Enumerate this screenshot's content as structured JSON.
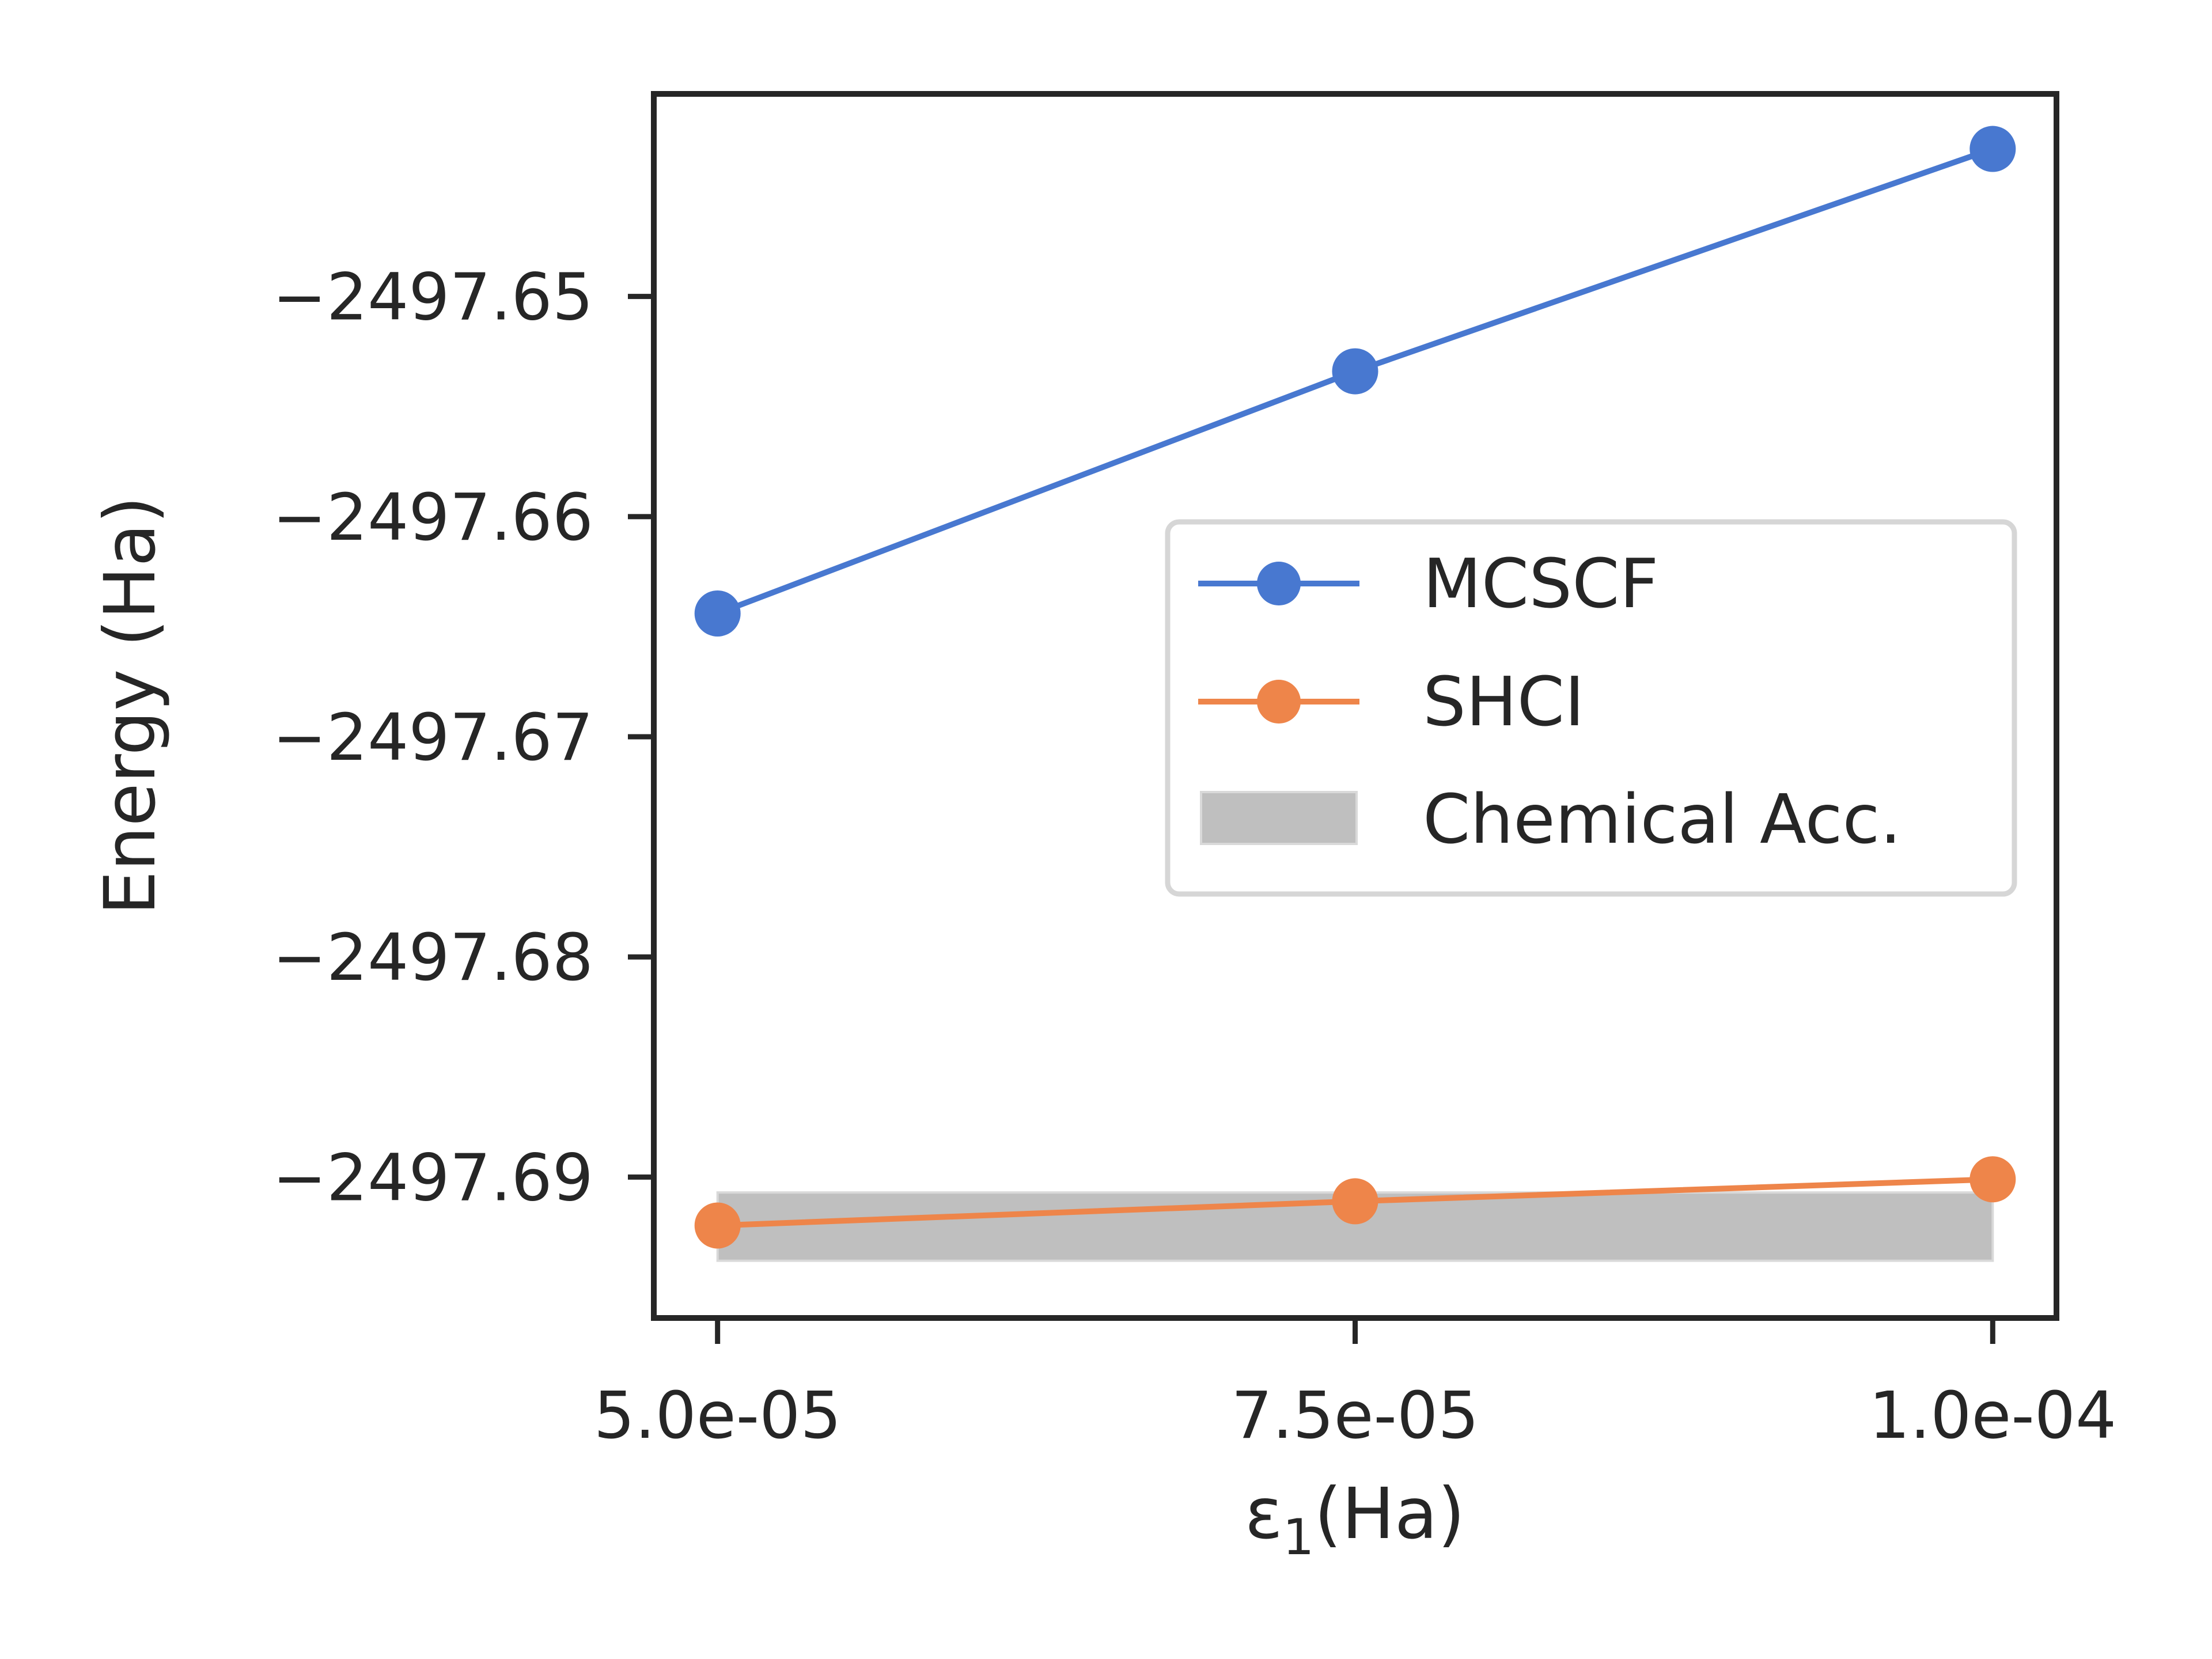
{
  "chart_data": {
    "type": "line",
    "xlabel": "ε₁(Ha)",
    "xlabel_main": "ε",
    "xlabel_sub": "1",
    "xlabel_tail": "(Ha)",
    "ylabel": "Energy (Ha)",
    "x": [
      5e-05,
      7.5e-05,
      0.0001
    ],
    "xticks": [
      {
        "value": 5e-05,
        "label": "5.0e-05"
      },
      {
        "value": 7.5e-05,
        "label": "7.5e-05"
      },
      {
        "value": 0.0001,
        "label": "1.0e-04"
      }
    ],
    "yticks": [
      {
        "value": -2497.65,
        "label": "−2497.65"
      },
      {
        "value": -2497.66,
        "label": "−2497.66"
      },
      {
        "value": -2497.67,
        "label": "−2497.67"
      },
      {
        "value": -2497.68,
        "label": "−2497.68"
      },
      {
        "value": -2497.69,
        "label": "−2497.69"
      }
    ],
    "xlim": [
      4.75e-05,
      0.0001025
    ],
    "ylim": [
      -2497.6964,
      -2497.6408
    ],
    "grid": false,
    "legend_position": "center-right",
    "series": [
      {
        "name": "MCSCF",
        "color": "#4878d0",
        "values": [
          -2497.6644,
          -2497.6534,
          -2497.6433
        ]
      },
      {
        "name": "SHCI",
        "color": "#ee854a",
        "values": [
          -2497.6922,
          -2497.6911,
          -2497.6901
        ]
      }
    ],
    "band": {
      "name": "Chemical Acc.",
      "color": "#bfbfbf",
      "x": [
        5e-05,
        0.0001
      ],
      "y": [
        -2497.6938,
        -2497.6907
      ]
    }
  }
}
